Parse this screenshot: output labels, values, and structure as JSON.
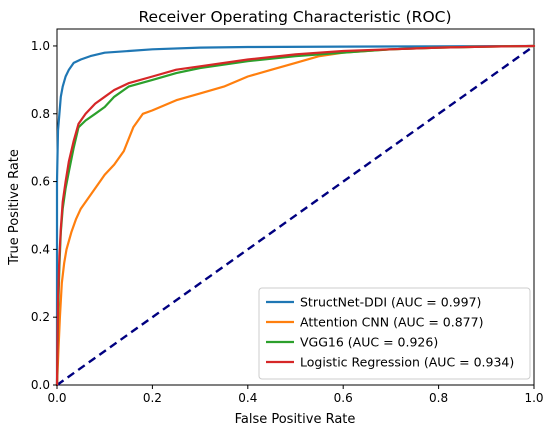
{
  "chart_data": {
    "type": "line",
    "title": "Receiver Operating Characteristic (ROC)",
    "xlabel": "False Positive Rate",
    "ylabel": "True Positive Rate",
    "xlim": [
      0,
      1
    ],
    "ylim": [
      0,
      1.05
    ],
    "xticks": [
      0.0,
      0.2,
      0.4,
      0.6,
      0.8,
      1.0
    ],
    "yticks": [
      0.0,
      0.2,
      0.4,
      0.6,
      0.8,
      1.0
    ],
    "xtick_labels": [
      "0.0",
      "0.2",
      "0.4",
      "0.6",
      "0.8",
      "1.0"
    ],
    "ytick_labels": [
      "0.0",
      "0.2",
      "0.4",
      "0.6",
      "0.8",
      "1.0"
    ],
    "grid": false,
    "legend_position": "bottom-right",
    "series": [
      {
        "name": "StructNet-DDI (AUC = 0.997)",
        "color": "#1f77b4",
        "x": [
          0,
          0,
          0.002,
          0.005,
          0.008,
          0.012,
          0.018,
          0.025,
          0.035,
          0.05,
          0.07,
          0.1,
          0.15,
          0.2,
          0.3,
          0.4,
          0.6,
          0.8,
          1.0
        ],
        "y": [
          0,
          0.6,
          0.75,
          0.8,
          0.85,
          0.88,
          0.91,
          0.93,
          0.95,
          0.96,
          0.97,
          0.98,
          0.985,
          0.99,
          0.995,
          0.997,
          0.998,
          0.999,
          1.0
        ]
      },
      {
        "name": "Attention CNN (AUC = 0.877)",
        "color": "#ff7f0e",
        "x": [
          0,
          0.003,
          0.006,
          0.01,
          0.015,
          0.02,
          0.03,
          0.04,
          0.05,
          0.07,
          0.09,
          0.1,
          0.12,
          0.14,
          0.16,
          0.18,
          0.2,
          0.25,
          0.3,
          0.35,
          0.4,
          0.45,
          0.5,
          0.55,
          0.6,
          0.7,
          0.8,
          0.9,
          1.0
        ],
        "y": [
          0,
          0.1,
          0.2,
          0.3,
          0.36,
          0.4,
          0.45,
          0.49,
          0.52,
          0.56,
          0.6,
          0.62,
          0.65,
          0.69,
          0.76,
          0.8,
          0.81,
          0.84,
          0.86,
          0.88,
          0.91,
          0.93,
          0.95,
          0.97,
          0.98,
          0.99,
          0.995,
          0.998,
          1.0
        ]
      },
      {
        "name": "VGG16 (AUC = 0.926)",
        "color": "#2ca02c",
        "x": [
          0,
          0.002,
          0.005,
          0.008,
          0.012,
          0.018,
          0.025,
          0.035,
          0.045,
          0.06,
          0.08,
          0.1,
          0.12,
          0.15,
          0.2,
          0.25,
          0.3,
          0.4,
          0.5,
          0.6,
          0.7,
          0.8,
          0.9,
          1.0
        ],
        "y": [
          0,
          0.2,
          0.35,
          0.45,
          0.52,
          0.58,
          0.63,
          0.7,
          0.76,
          0.78,
          0.8,
          0.82,
          0.85,
          0.88,
          0.9,
          0.92,
          0.935,
          0.955,
          0.97,
          0.98,
          0.99,
          0.995,
          0.998,
          1.0
        ]
      },
      {
        "name": "Logistic Regression (AUC = 0.934)",
        "color": "#d62728",
        "x": [
          0,
          0.002,
          0.005,
          0.008,
          0.012,
          0.018,
          0.025,
          0.035,
          0.045,
          0.06,
          0.08,
          0.1,
          0.12,
          0.15,
          0.2,
          0.25,
          0.3,
          0.4,
          0.5,
          0.6,
          0.7,
          0.8,
          0.9,
          1.0
        ],
        "y": [
          0,
          0.25,
          0.38,
          0.46,
          0.54,
          0.6,
          0.66,
          0.72,
          0.77,
          0.8,
          0.83,
          0.85,
          0.87,
          0.89,
          0.91,
          0.93,
          0.94,
          0.96,
          0.975,
          0.985,
          0.99,
          0.995,
          0.998,
          1.0
        ]
      }
    ],
    "reference_line": {
      "x": [
        0,
        1
      ],
      "y": [
        0,
        1
      ],
      "color": "#000080",
      "style": "dashed"
    }
  }
}
